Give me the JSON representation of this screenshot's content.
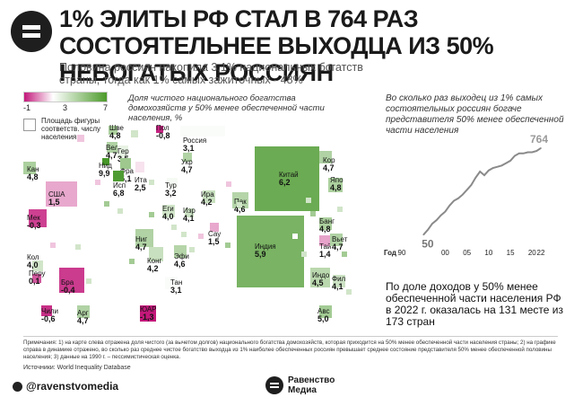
{
  "header": {
    "title": "1% элиты РФ стал в 764 раз состоятельнее выходца из 50% небогатых россиян",
    "subtitle": "Половина россиян накопила 3,1% национальных богатств страны, тогда как 1% самых зажиточных - 48%"
  },
  "legend": {
    "min": "-1",
    "mid": "3",
    "max": "7",
    "area_note": "Площадь фигуры соответств. числу населения",
    "low_color": "#c2187a",
    "high_color": "#4c9a2a"
  },
  "map": {
    "title": "Доля чистого национального богатства домохозяйств у 50% менее обеспеченной части населения, %",
    "countries": [
      {
        "name": "Шве",
        "value": "4,8"
      },
      {
        "name": "Пол",
        "value": "-0,8"
      },
      {
        "name": "Россия",
        "value": "3,1"
      },
      {
        "name": "Вел",
        "value": "4,7"
      },
      {
        "name": "Гер",
        "value": "3,5"
      },
      {
        "name": "Укр",
        "value": "4,7"
      },
      {
        "name": "Нид",
        "value": "9,9"
      },
      {
        "name": "Фра",
        "value": "5,1"
      },
      {
        "name": "Ита",
        "value": "2,5"
      },
      {
        "name": "Исп",
        "value": "6,8"
      },
      {
        "name": "Тур",
        "value": "3,2"
      },
      {
        "name": "Кан",
        "value": "4,8"
      },
      {
        "name": "США",
        "value": "1,5"
      },
      {
        "name": "Мек",
        "value": "-0,3"
      },
      {
        "name": "Кол",
        "value": "4,0"
      },
      {
        "name": "Перу",
        "value": "0,1"
      },
      {
        "name": "Бра",
        "value": "-0,4"
      },
      {
        "name": "Чили",
        "value": "-0,6"
      },
      {
        "name": "Арг",
        "value": "4,7"
      },
      {
        "name": "Ира",
        "value": "4,2"
      },
      {
        "name": "Еги",
        "value": "4,0"
      },
      {
        "name": "Изр",
        "value": "4,1"
      },
      {
        "name": "Сау",
        "value": "1,5"
      },
      {
        "name": "Ниг",
        "value": "4,7"
      },
      {
        "name": "Конг",
        "value": "4,2"
      },
      {
        "name": "Эфи",
        "value": "4,6"
      },
      {
        "name": "Тан",
        "value": "3,1"
      },
      {
        "name": "ЮАР",
        "value": "-1,3"
      },
      {
        "name": "Пак",
        "value": "4,6"
      },
      {
        "name": "Индия",
        "value": "5,9"
      },
      {
        "name": "Китай",
        "value": "6,2"
      },
      {
        "name": "Кор",
        "value": "4,7"
      },
      {
        "name": "Япо",
        "value": "4,8"
      },
      {
        "name": "Банг",
        "value": "4,8"
      },
      {
        "name": "Тай",
        "value": "1,4"
      },
      {
        "name": "Вьет",
        "value": "4,7"
      },
      {
        "name": "Индо",
        "value": "4,5"
      },
      {
        "name": "Фил",
        "value": "4,1"
      },
      {
        "name": "Авс",
        "value": "5,0"
      }
    ]
  },
  "right_chart": {
    "title": "Во сколько раз выходец из 1% самых состоятельных россиян богаче представителя 50% менее обеспеченной части населения",
    "callout": "По доле доходов у 50% менее обеспеченной части населения РФ в 2022 г. оказалась на 131 месте из 173 стран"
  },
  "chart_data": {
    "type": "line",
    "title": "Во сколько раз выходец из 1% самых состоятельных россиян богаче представителя 50% менее обеспеченной части населения",
    "xlabel": "Год",
    "x_tick_labels": [
      "90",
      "00",
      "05",
      "10",
      "15",
      "20",
      "22"
    ],
    "x": [
      1995,
      1996,
      1997,
      1998,
      1999,
      2000,
      2001,
      2002,
      2003,
      2004,
      2005,
      2006,
      2007,
      2008,
      2009,
      2010,
      2011,
      2012,
      2013,
      2014,
      2015,
      2016,
      2017,
      2018,
      2019,
      2020,
      2021,
      2022
    ],
    "series": [
      {
        "values": [
          50,
          90,
          140,
          170,
          210,
          240,
          290,
          330,
          350,
          380,
          420,
          460,
          520,
          570,
          540,
          580,
          600,
          610,
          620,
          640,
          660,
          700,
          720,
          720,
          730,
          730,
          740,
          764
        ]
      }
    ],
    "labels": {
      "start": "50",
      "end": "764"
    },
    "line_color": "#8a8a8a",
    "end_color": "#9a9a9a"
  },
  "footer": {
    "notes": "Примечания: 1) на карте слева отражена доля чистого (за вычетом долгов) национального богатства домохозяйств, которая приходится на 50% менее обеспеченной части населения страны; 2) на графике справа в динамике отражено, во сколько раз среднее чистое богатство выходца из 1% наиболее обеспеченных россиян превышает среднее состояние представителя 50% менее обеспеченной половины населения; 3) данные на 1990 г. – пессимистическая оценка.",
    "source": "Источники: World Inequality Database",
    "handle": "@ravenstvomedia",
    "brand_line1": "Равенство",
    "brand_line2": "Медиа"
  }
}
